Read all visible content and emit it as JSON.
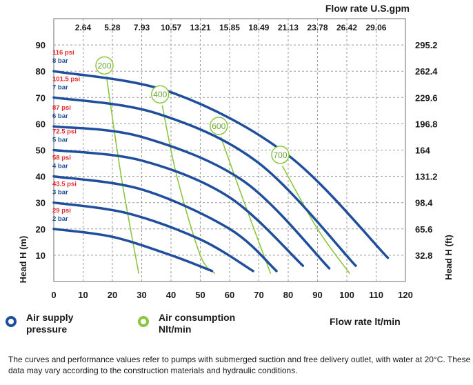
{
  "chart_data": {
    "type": "line",
    "title": "",
    "xlabel": "Flow rate  lt/min",
    "x2label": "Flow rate U.S.gpm",
    "ylabel": "Head H (m)",
    "y2label": "Head H (ft)",
    "xlim": [
      0,
      120
    ],
    "ylim": [
      0,
      100
    ],
    "x_ticks": [
      0,
      10,
      20,
      30,
      40,
      50,
      60,
      70,
      80,
      90,
      100,
      110,
      120
    ],
    "y_ticks": [
      10,
      20,
      30,
      40,
      50,
      60,
      70,
      80,
      90
    ],
    "x2_ticks": [
      "2.64",
      "5.28",
      "7.93",
      "10.57",
      "13.21",
      "15.85",
      "18.49",
      "21.13",
      "23.78",
      "26.42",
      "29.06"
    ],
    "y2_ticks": [
      "295.2",
      "262.4",
      "229.6",
      "196.8",
      "164",
      "131.2",
      "98.4",
      "65.6",
      "32.8"
    ],
    "grid": true,
    "pressure_series": [
      {
        "psi": "29 psi",
        "bar": "2 bar",
        "points": [
          [
            0,
            20
          ],
          [
            20,
            17
          ],
          [
            40,
            10
          ],
          [
            54,
            4
          ]
        ]
      },
      {
        "psi": "43.5 psi",
        "bar": "3 bar",
        "points": [
          [
            0,
            30
          ],
          [
            25,
            26
          ],
          [
            50,
            16
          ],
          [
            68,
            4
          ]
        ]
      },
      {
        "psi": "58 psi",
        "bar": "4 bar",
        "points": [
          [
            0,
            40
          ],
          [
            30,
            35
          ],
          [
            60,
            20
          ],
          [
            76,
            4
          ]
        ]
      },
      {
        "psi": "72.5 psi",
        "bar": "5 bar",
        "points": [
          [
            0,
            50
          ],
          [
            30,
            46
          ],
          [
            60,
            32
          ],
          [
            85,
            6
          ]
        ]
      },
      {
        "psi": "87 psi",
        "bar": "6 bar",
        "points": [
          [
            0,
            59
          ],
          [
            30,
            55
          ],
          [
            65,
            38
          ],
          [
            94,
            5
          ]
        ]
      },
      {
        "psi": "101.5 psi",
        "bar": "7 bar",
        "points": [
          [
            0,
            70
          ],
          [
            35,
            64
          ],
          [
            70,
            45
          ],
          [
            103,
            6
          ]
        ]
      },
      {
        "psi": "116 psi",
        "bar": "8 bar",
        "points": [
          [
            0,
            80
          ],
          [
            40,
            72
          ],
          [
            80,
            48
          ],
          [
            114,
            9
          ]
        ]
      }
    ],
    "air_consumption_series": [
      {
        "label": "200",
        "points": [
          [
            18,
            78
          ],
          [
            23,
            40
          ],
          [
            29,
            3
          ]
        ]
      },
      {
        "label": "400",
        "points": [
          [
            37,
            67
          ],
          [
            42,
            40
          ],
          [
            50,
            10
          ],
          [
            55,
            3
          ]
        ]
      },
      {
        "label": "600",
        "points": [
          [
            57,
            55
          ],
          [
            65,
            30
          ],
          [
            74,
            3
          ]
        ]
      },
      {
        "label": "700",
        "points": [
          [
            78,
            44
          ],
          [
            90,
            20
          ],
          [
            101,
            3
          ]
        ]
      }
    ]
  },
  "legend": {
    "pressure_label_1": "Air supply",
    "pressure_label_2": "pressure",
    "consumption_label_1": "Air consumption",
    "consumption_label_2": "Nlt/min",
    "pressure_color": "#1f4e9c",
    "consumption_color": "#8cc63f"
  },
  "note": "The curves and performance values refer to pumps with submerged suction and free delivery outlet, with water at 20°C. These data may vary according to the construction materials and hydraulic conditions."
}
